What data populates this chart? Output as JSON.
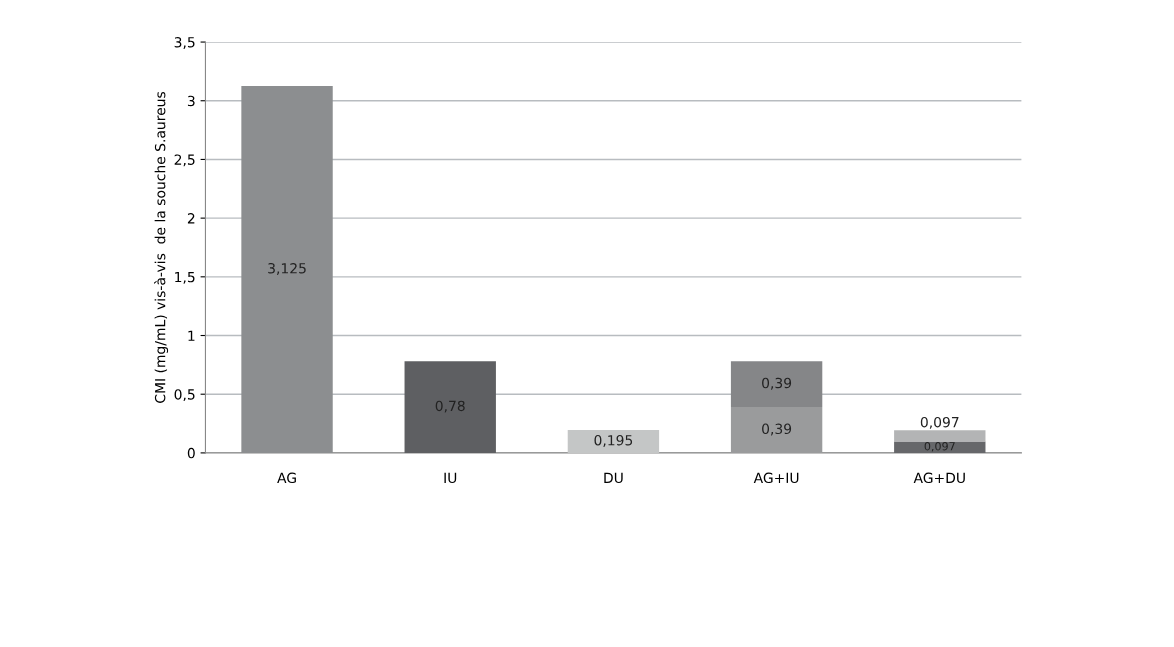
{
  "chart_data": {
    "type": "bar",
    "stacked": true,
    "ylabel": "CMI (mg/mL) vis-à-vis  de la souche S.aureus",
    "categories": [
      "AG",
      "IU",
      "DU",
      "AG+IU",
      "AG+DU"
    ],
    "series": [
      {
        "colors": [
          "#8c8e90",
          "#5e5f62",
          "#c4c6c6",
          "#9a9b9c",
          "#66676a"
        ],
        "values": [
          3.125,
          0.78,
          0.195,
          0.39,
          0.097
        ],
        "value_labels": [
          "3,125",
          "0,78",
          "0,195",
          "0,39",
          "0,097"
        ]
      },
      {
        "colors": [
          null,
          null,
          null,
          "#858688",
          "#b3b4b5"
        ],
        "values": [
          null,
          null,
          null,
          0.39,
          0.097
        ],
        "value_labels": [
          null,
          null,
          null,
          "0,39",
          "0,097"
        ]
      }
    ],
    "ylim": [
      0,
      3.5
    ],
    "yticks": [
      0,
      {
        "value": 0.5,
        "label": "0,5"
      },
      1,
      {
        "value": 1.5,
        "label": "1,5"
      },
      2,
      {
        "value": 2.5,
        "label": "2,5"
      },
      3,
      {
        "value": 3.5,
        "label": "3,5"
      }
    ],
    "grid": "y"
  }
}
